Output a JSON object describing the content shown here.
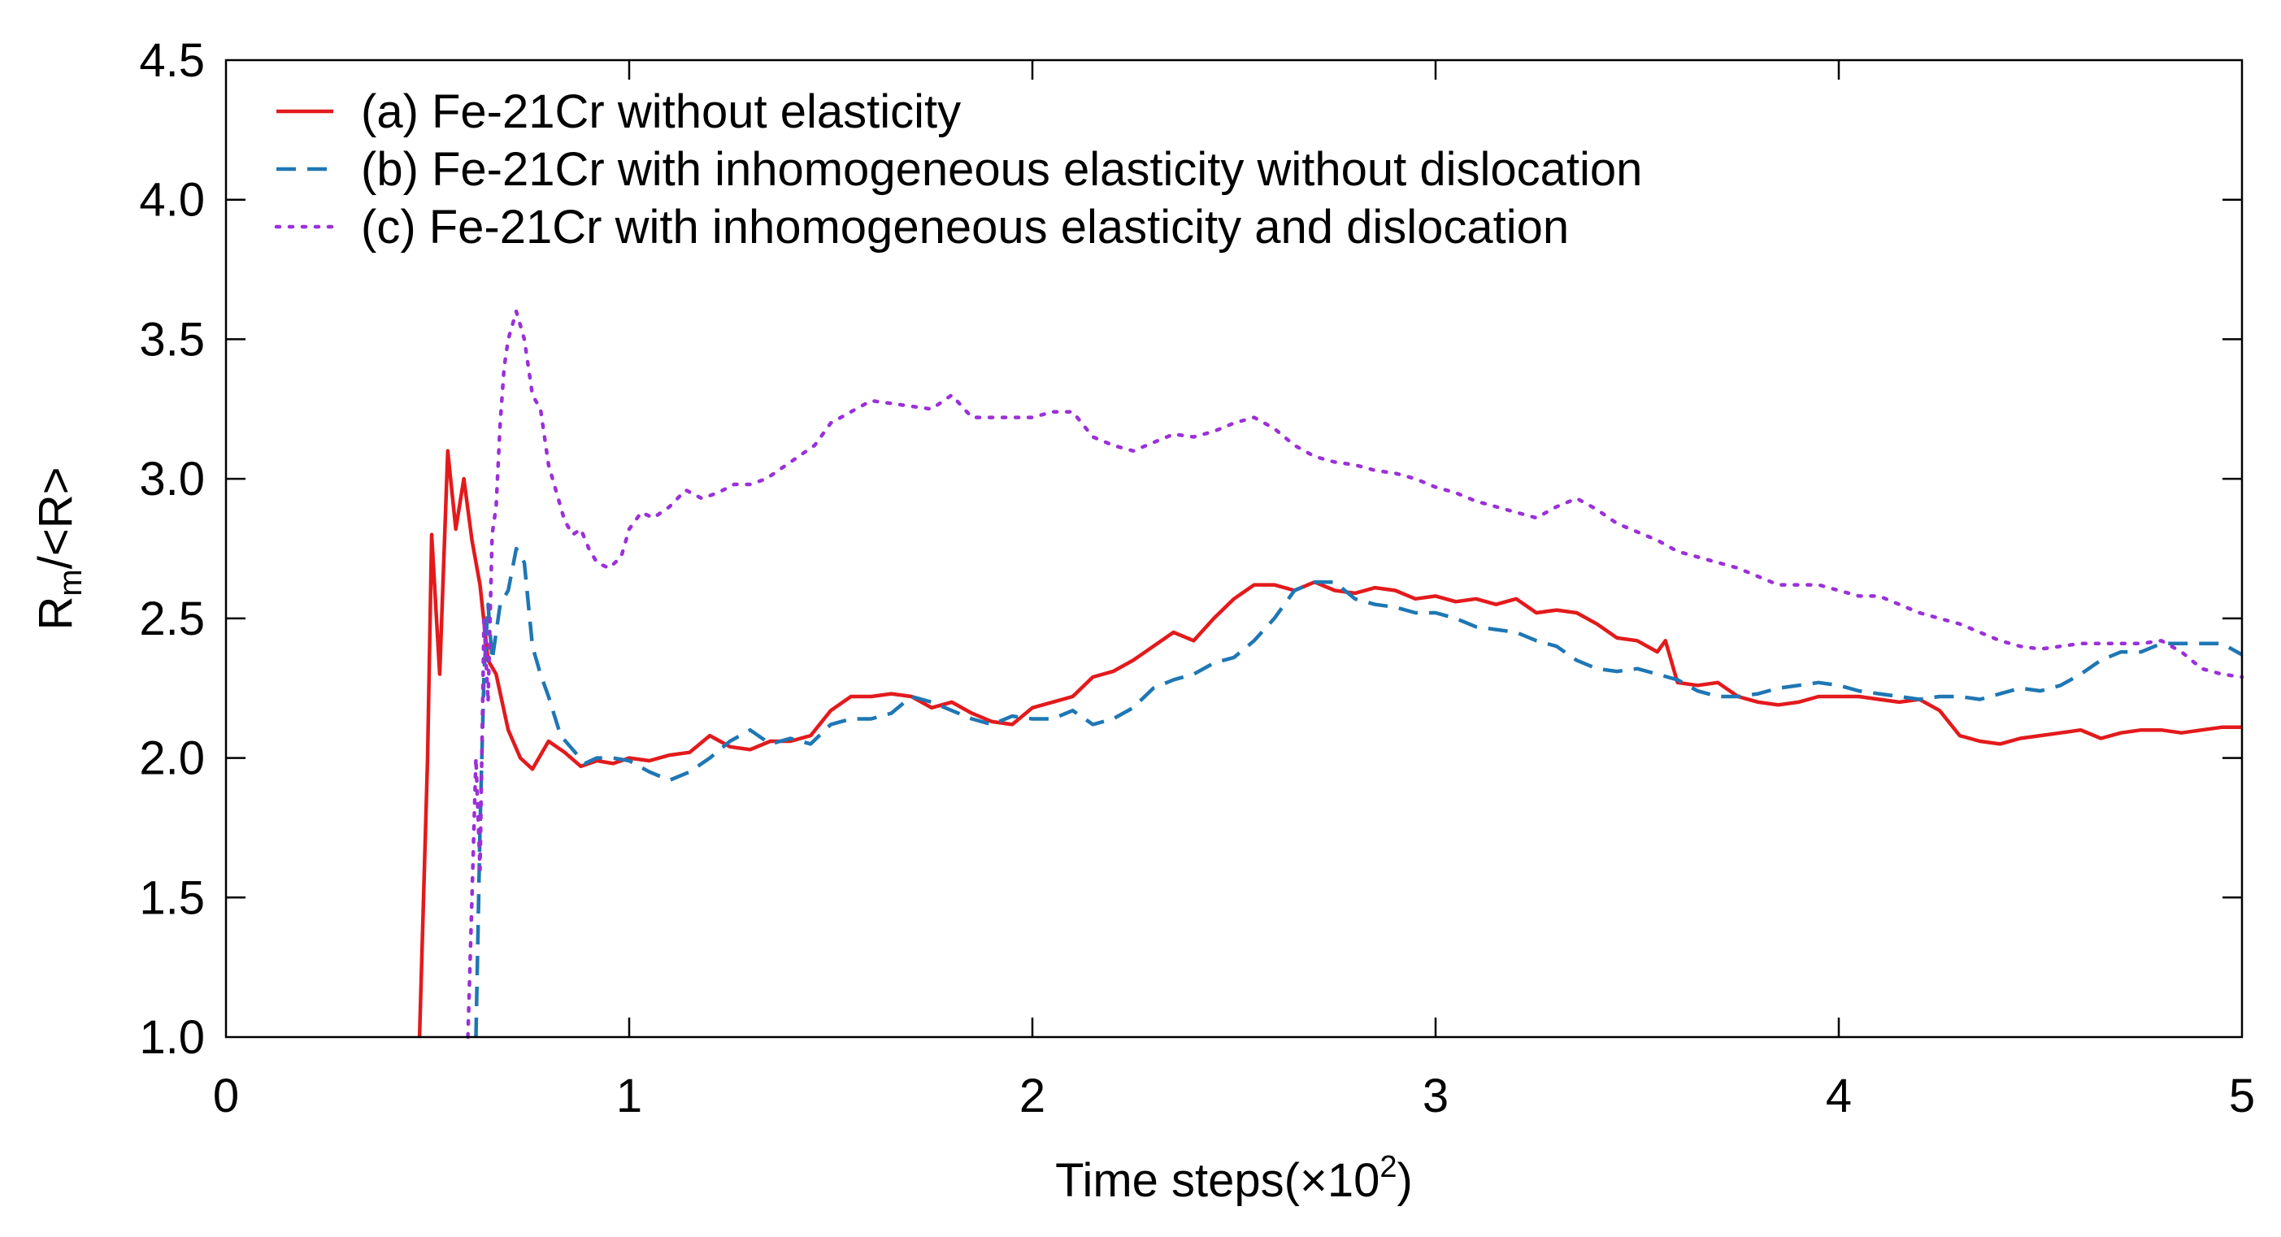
{
  "chart_data": {
    "type": "line",
    "xlabel": "Time steps(×10",
    "xlabel_exp": "2",
    "xlabel_close": ")",
    "ylabel_main": "R",
    "ylabel_sub": "m",
    "ylabel_rest": "/<R>",
    "xlim": [
      0,
      5
    ],
    "ylim": [
      1.0,
      4.5
    ],
    "xticks": [
      0,
      1,
      2,
      3,
      4,
      5
    ],
    "xtick_labels": [
      "0",
      "1",
      "2",
      "3",
      "4",
      "5"
    ],
    "yticks": [
      1.0,
      1.5,
      2.0,
      2.5,
      3.0,
      3.5,
      4.0,
      4.5
    ],
    "ytick_labels": [
      "1.0",
      "1.5",
      "2.0",
      "2.5",
      "3.0",
      "3.5",
      "4.0",
      "4.5"
    ],
    "grid": false,
    "legend_position": "top-left",
    "series": [
      {
        "name": "(a) Fe-21Cr without elasticity",
        "color": "#e31a1c",
        "style": "solid",
        "x": [
          0.48,
          0.5,
          0.51,
          0.53,
          0.55,
          0.57,
          0.59,
          0.61,
          0.63,
          0.65,
          0.67,
          0.7,
          0.73,
          0.76,
          0.8,
          0.84,
          0.88,
          0.92,
          0.96,
          1.0,
          1.05,
          1.1,
          1.15,
          1.2,
          1.25,
          1.3,
          1.35,
          1.4,
          1.45,
          1.5,
          1.55,
          1.6,
          1.65,
          1.7,
          1.75,
          1.8,
          1.85,
          1.9,
          1.95,
          2.0,
          2.05,
          2.1,
          2.15,
          2.2,
          2.25,
          2.3,
          2.35,
          2.4,
          2.45,
          2.5,
          2.55,
          2.6,
          2.65,
          2.7,
          2.75,
          2.8,
          2.85,
          2.9,
          2.95,
          3.0,
          3.05,
          3.1,
          3.15,
          3.2,
          3.25,
          3.3,
          3.35,
          3.4,
          3.45,
          3.5,
          3.55,
          3.57,
          3.6,
          3.65,
          3.7,
          3.75,
          3.8,
          3.85,
          3.9,
          3.95,
          4.0,
          4.05,
          4.1,
          4.15,
          4.2,
          4.25,
          4.3,
          4.35,
          4.4,
          4.45,
          4.5,
          4.55,
          4.6,
          4.65,
          4.7,
          4.75,
          4.8,
          4.85,
          4.9,
          4.95,
          5.0
        ],
        "values": [
          1.0,
          2.0,
          2.8,
          2.3,
          3.1,
          2.82,
          3.0,
          2.78,
          2.62,
          2.35,
          2.3,
          2.1,
          2.0,
          1.96,
          2.06,
          2.02,
          1.97,
          1.99,
          1.98,
          2.0,
          1.99,
          2.01,
          2.02,
          2.08,
          2.04,
          2.03,
          2.06,
          2.06,
          2.08,
          2.17,
          2.22,
          2.22,
          2.23,
          2.22,
          2.18,
          2.2,
          2.16,
          2.13,
          2.12,
          2.18,
          2.2,
          2.22,
          2.29,
          2.31,
          2.35,
          2.4,
          2.45,
          2.42,
          2.5,
          2.57,
          2.62,
          2.62,
          2.6,
          2.63,
          2.6,
          2.59,
          2.61,
          2.6,
          2.57,
          2.58,
          2.56,
          2.57,
          2.55,
          2.57,
          2.52,
          2.53,
          2.52,
          2.48,
          2.43,
          2.42,
          2.38,
          2.42,
          2.27,
          2.26,
          2.27,
          2.22,
          2.2,
          2.19,
          2.2,
          2.22,
          2.22,
          2.22,
          2.21,
          2.2,
          2.21,
          2.17,
          2.08,
          2.06,
          2.05,
          2.07,
          2.08,
          2.09,
          2.1,
          2.07,
          2.09,
          2.1,
          2.1,
          2.09,
          2.1,
          2.11,
          2.11
        ]
      },
      {
        "name": "(b) Fe-21Cr with inhomogeneous elasticity without dislocation",
        "color": "#1f77b4",
        "style": "dashed",
        "x": [
          0.62,
          0.63,
          0.64,
          0.65,
          0.66,
          0.68,
          0.7,
          0.72,
          0.74,
          0.76,
          0.78,
          0.8,
          0.83,
          0.86,
          0.89,
          0.92,
          0.96,
          1.0,
          1.05,
          1.1,
          1.15,
          1.2,
          1.25,
          1.3,
          1.35,
          1.4,
          1.45,
          1.5,
          1.55,
          1.6,
          1.65,
          1.7,
          1.75,
          1.8,
          1.85,
          1.9,
          1.95,
          2.0,
          2.05,
          2.1,
          2.15,
          2.2,
          2.25,
          2.3,
          2.35,
          2.4,
          2.45,
          2.5,
          2.55,
          2.6,
          2.65,
          2.7,
          2.75,
          2.8,
          2.85,
          2.9,
          2.95,
          3.0,
          3.05,
          3.1,
          3.15,
          3.2,
          3.25,
          3.3,
          3.35,
          3.4,
          3.45,
          3.5,
          3.55,
          3.6,
          3.65,
          3.7,
          3.75,
          3.8,
          3.85,
          3.9,
          3.95,
          4.0,
          4.05,
          4.1,
          4.15,
          4.2,
          4.25,
          4.3,
          4.35,
          4.4,
          4.45,
          4.5,
          4.55,
          4.6,
          4.65,
          4.7,
          4.75,
          4.8,
          4.85,
          4.9,
          4.95,
          5.0
        ],
        "values": [
          1.0,
          1.75,
          2.3,
          2.55,
          2.35,
          2.55,
          2.6,
          2.75,
          2.7,
          2.4,
          2.3,
          2.22,
          2.08,
          2.03,
          1.98,
          2.0,
          2.0,
          1.99,
          1.95,
          1.92,
          1.95,
          2.0,
          2.06,
          2.1,
          2.05,
          2.07,
          2.05,
          2.12,
          2.14,
          2.14,
          2.16,
          2.22,
          2.2,
          2.17,
          2.14,
          2.12,
          2.15,
          2.14,
          2.14,
          2.17,
          2.12,
          2.14,
          2.18,
          2.25,
          2.28,
          2.3,
          2.34,
          2.36,
          2.42,
          2.5,
          2.6,
          2.63,
          2.63,
          2.57,
          2.55,
          2.54,
          2.52,
          2.52,
          2.5,
          2.47,
          2.46,
          2.45,
          2.42,
          2.4,
          2.35,
          2.32,
          2.31,
          2.32,
          2.3,
          2.28,
          2.24,
          2.22,
          2.22,
          2.23,
          2.25,
          2.26,
          2.27,
          2.26,
          2.24,
          2.23,
          2.22,
          2.21,
          2.22,
          2.22,
          2.21,
          2.23,
          2.25,
          2.24,
          2.26,
          2.3,
          2.35,
          2.38,
          2.38,
          2.41,
          2.41,
          2.41,
          2.41,
          2.37
        ]
      },
      {
        "name": "(c) Fe-21Cr with inhomogeneous elasticity and dislocation",
        "color": "#9b30d9",
        "style": "dotted",
        "x": [
          0.6,
          0.61,
          0.62,
          0.63,
          0.64,
          0.65,
          0.66,
          0.67,
          0.68,
          0.69,
          0.7,
          0.71,
          0.72,
          0.73,
          0.74,
          0.75,
          0.76,
          0.78,
          0.8,
          0.82,
          0.84,
          0.86,
          0.88,
          0.9,
          0.92,
          0.95,
          0.98,
          1.0,
          1.03,
          1.06,
          1.1,
          1.14,
          1.18,
          1.22,
          1.26,
          1.3,
          1.34,
          1.38,
          1.42,
          1.46,
          1.5,
          1.55,
          1.6,
          1.65,
          1.7,
          1.75,
          1.8,
          1.85,
          1.9,
          1.95,
          2.0,
          2.05,
          2.1,
          2.15,
          2.2,
          2.25,
          2.3,
          2.35,
          2.4,
          2.45,
          2.5,
          2.55,
          2.6,
          2.65,
          2.7,
          2.75,
          2.8,
          2.85,
          2.9,
          2.95,
          3.0,
          3.05,
          3.1,
          3.15,
          3.2,
          3.25,
          3.3,
          3.35,
          3.4,
          3.45,
          3.5,
          3.55,
          3.6,
          3.65,
          3.7,
          3.75,
          3.8,
          3.85,
          3.9,
          3.95,
          4.0,
          4.05,
          4.1,
          4.15,
          4.2,
          4.25,
          4.3,
          4.35,
          4.4,
          4.45,
          4.5,
          4.55,
          4.6,
          4.65,
          4.7,
          4.75,
          4.8,
          4.85,
          4.9,
          4.95,
          5.0
        ],
        "values": [
          1.0,
          1.5,
          2.0,
          1.6,
          2.5,
          2.2,
          2.8,
          2.9,
          3.2,
          3.4,
          3.5,
          3.55,
          3.6,
          3.55,
          3.5,
          3.4,
          3.3,
          3.25,
          3.05,
          2.95,
          2.85,
          2.8,
          2.82,
          2.75,
          2.7,
          2.68,
          2.72,
          2.82,
          2.88,
          2.86,
          2.9,
          2.96,
          2.93,
          2.95,
          2.98,
          2.98,
          3.0,
          3.04,
          3.08,
          3.12,
          3.2,
          3.24,
          3.28,
          3.27,
          3.26,
          3.25,
          3.3,
          3.22,
          3.22,
          3.22,
          3.22,
          3.24,
          3.24,
          3.15,
          3.12,
          3.1,
          3.13,
          3.16,
          3.15,
          3.17,
          3.2,
          3.22,
          3.18,
          3.12,
          3.08,
          3.06,
          3.05,
          3.03,
          3.02,
          3.0,
          2.97,
          2.95,
          2.92,
          2.9,
          2.88,
          2.86,
          2.9,
          2.93,
          2.89,
          2.84,
          2.81,
          2.78,
          2.74,
          2.72,
          2.7,
          2.68,
          2.65,
          2.62,
          2.62,
          2.62,
          2.6,
          2.58,
          2.58,
          2.55,
          2.52,
          2.5,
          2.48,
          2.45,
          2.42,
          2.4,
          2.39,
          2.4,
          2.41,
          2.41,
          2.41,
          2.41,
          2.42,
          2.38,
          2.32,
          2.3,
          2.29
        ]
      }
    ]
  }
}
